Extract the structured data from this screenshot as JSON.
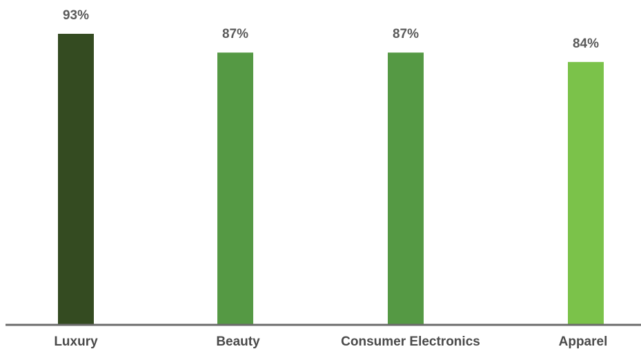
{
  "chart_data": {
    "type": "bar",
    "title": "",
    "xlabel": "",
    "ylabel": "",
    "categories": [
      "Luxury",
      "Beauty",
      "Consumer Electronics",
      "Apparel"
    ],
    "values": [
      93,
      87,
      87,
      84
    ],
    "value_labels": [
      "93%",
      "87%",
      "87%",
      "84%"
    ],
    "colors": [
      "#344b21",
      "#559944",
      "#559944",
      "#7bc24a"
    ],
    "axis_color": "#6b6b6b",
    "ylim": [
      0,
      93
    ],
    "grid": false,
    "legend": "none"
  }
}
